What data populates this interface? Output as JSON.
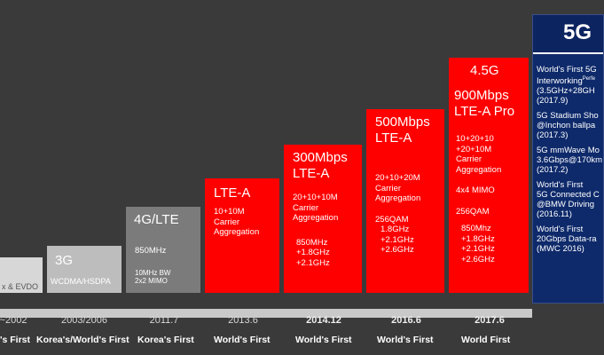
{
  "columns": [
    {
      "id": "c2002",
      "head": "x & EVDO",
      "year": "~2002",
      "first": "'s First"
    },
    {
      "id": "c2003",
      "head": "3G",
      "sub": "WCDMA/HSDPA",
      "year": "2003/2006",
      "first": "Korea's/World's First"
    },
    {
      "id": "c2011",
      "head": "4G/LTE",
      "lines": [
        "850MHz"
      ],
      "lines2": [
        "10MHz BW",
        "2x2 MIMO"
      ],
      "year": "2011.7",
      "first": "Korea's First"
    },
    {
      "id": "c2013",
      "head": "LTE-A",
      "lines": [
        "10+10M",
        "Carrier",
        "Aggregation"
      ],
      "year": "2013.6",
      "first": "World's First"
    },
    {
      "id": "c2014",
      "head1": "300Mbps",
      "head2": "LTE-A",
      "lines": [
        "20+10+10M",
        "Carrier",
        "Aggregation"
      ],
      "lines2": [
        "850MHz",
        "+1.8GHz",
        "+2.1GHz"
      ],
      "year": "2014.12",
      "first": "World's First"
    },
    {
      "id": "c2016",
      "head1": "500Mbps",
      "head2": "LTE-A",
      "lines": [
        "20+10+20M",
        "Carrier",
        "Aggregation"
      ],
      "lines2": [
        "256QAM",
        "1.8GHz",
        "+2.1GHz",
        "+2.6GHz"
      ],
      "year": "2016.6",
      "first": "World's First"
    },
    {
      "id": "c2017",
      "top": "4.5G",
      "head1": "900Mbps",
      "head2": "LTE-A Pro",
      "lines": [
        "10+20+10",
        "+20+10M",
        "Carrier",
        "Aggregation"
      ],
      "lines2": [
        "4x4 MIMO"
      ],
      "lines3": [
        "256QAM"
      ],
      "lines4": [
        "850Mhz",
        "+1.8GHz",
        "+2.1GHz",
        "+2.6GHz"
      ],
      "year": "2017.6",
      "first": "World First"
    }
  ],
  "fiveg": {
    "title": "5G",
    "items": [
      [
        "World's First 5G",
        "Interworking",
        "(3.5GHz+28GH",
        "(2017.9)"
      ],
      [
        "5G Stadium Sho",
        "@Inchon ballpa",
        "(2017.3)"
      ],
      [
        "5G mmWave Mo",
        "3.6Gbps@170km",
        "(2017.2)"
      ],
      [
        "World's First",
        "5G Connected C",
        "@BMW Driving",
        "(2016.11)"
      ],
      [
        "World's First",
        "20Gbps Data-ra",
        "(MWC 2016)"
      ]
    ],
    "superscript": "Perfe"
  },
  "colors": {
    "red": "#ff0000",
    "blue": "#0e2a6b",
    "bg": "#3a3a3a"
  }
}
